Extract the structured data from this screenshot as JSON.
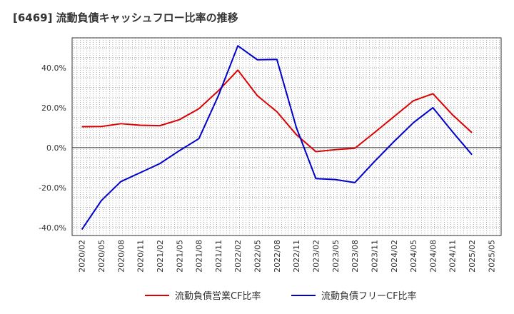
{
  "title": "[6469]  流動負債キャッシュフロー比率の推移",
  "chart_data": {
    "type": "line",
    "title": "[6469]  流動負債キャッシュフロー比率の推移",
    "xlabel": "",
    "ylabel": "",
    "x": [
      "2020/02",
      "2020/05",
      "2020/08",
      "2020/11",
      "2021/02",
      "2021/05",
      "2021/08",
      "2021/11",
      "2022/02",
      "2022/05",
      "2022/08",
      "2022/11",
      "2023/02",
      "2023/05",
      "2023/08",
      "2023/11",
      "2024/02",
      "2024/05",
      "2024/08",
      "2024/11",
      "2025/02",
      "2025/05"
    ],
    "ylim": [
      -44,
      55
    ],
    "yticks": [
      -40,
      -20,
      0,
      20,
      40
    ],
    "ytick_labels": [
      "-40.0%",
      "-20.0%",
      "0.0%",
      "20.0%",
      "40.0%"
    ],
    "grid": true,
    "legend_position": "bottom",
    "series": [
      {
        "name": "流動負債営業CF比率",
        "color": "#dd0000",
        "values": [
          10.5,
          10.6,
          12.0,
          11.2,
          11.0,
          14.0,
          19.5,
          28.5,
          38.8,
          26.0,
          18.0,
          6.5,
          -2.0,
          -1.0,
          -0.3,
          7.5,
          15.5,
          23.5,
          27.0,
          16.5,
          7.5,
          null
        ]
      },
      {
        "name": "流動負債フリーCF比率",
        "color": "#0000cc",
        "values": [
          -41.0,
          -26.5,
          -17.0,
          -12.5,
          -8.0,
          -1.5,
          4.5,
          26.0,
          51.0,
          44.0,
          44.2,
          10.0,
          -15.5,
          -16.0,
          -17.5,
          -7.0,
          3.0,
          12.5,
          20.0,
          8.0,
          -3.5,
          null
        ]
      }
    ]
  }
}
